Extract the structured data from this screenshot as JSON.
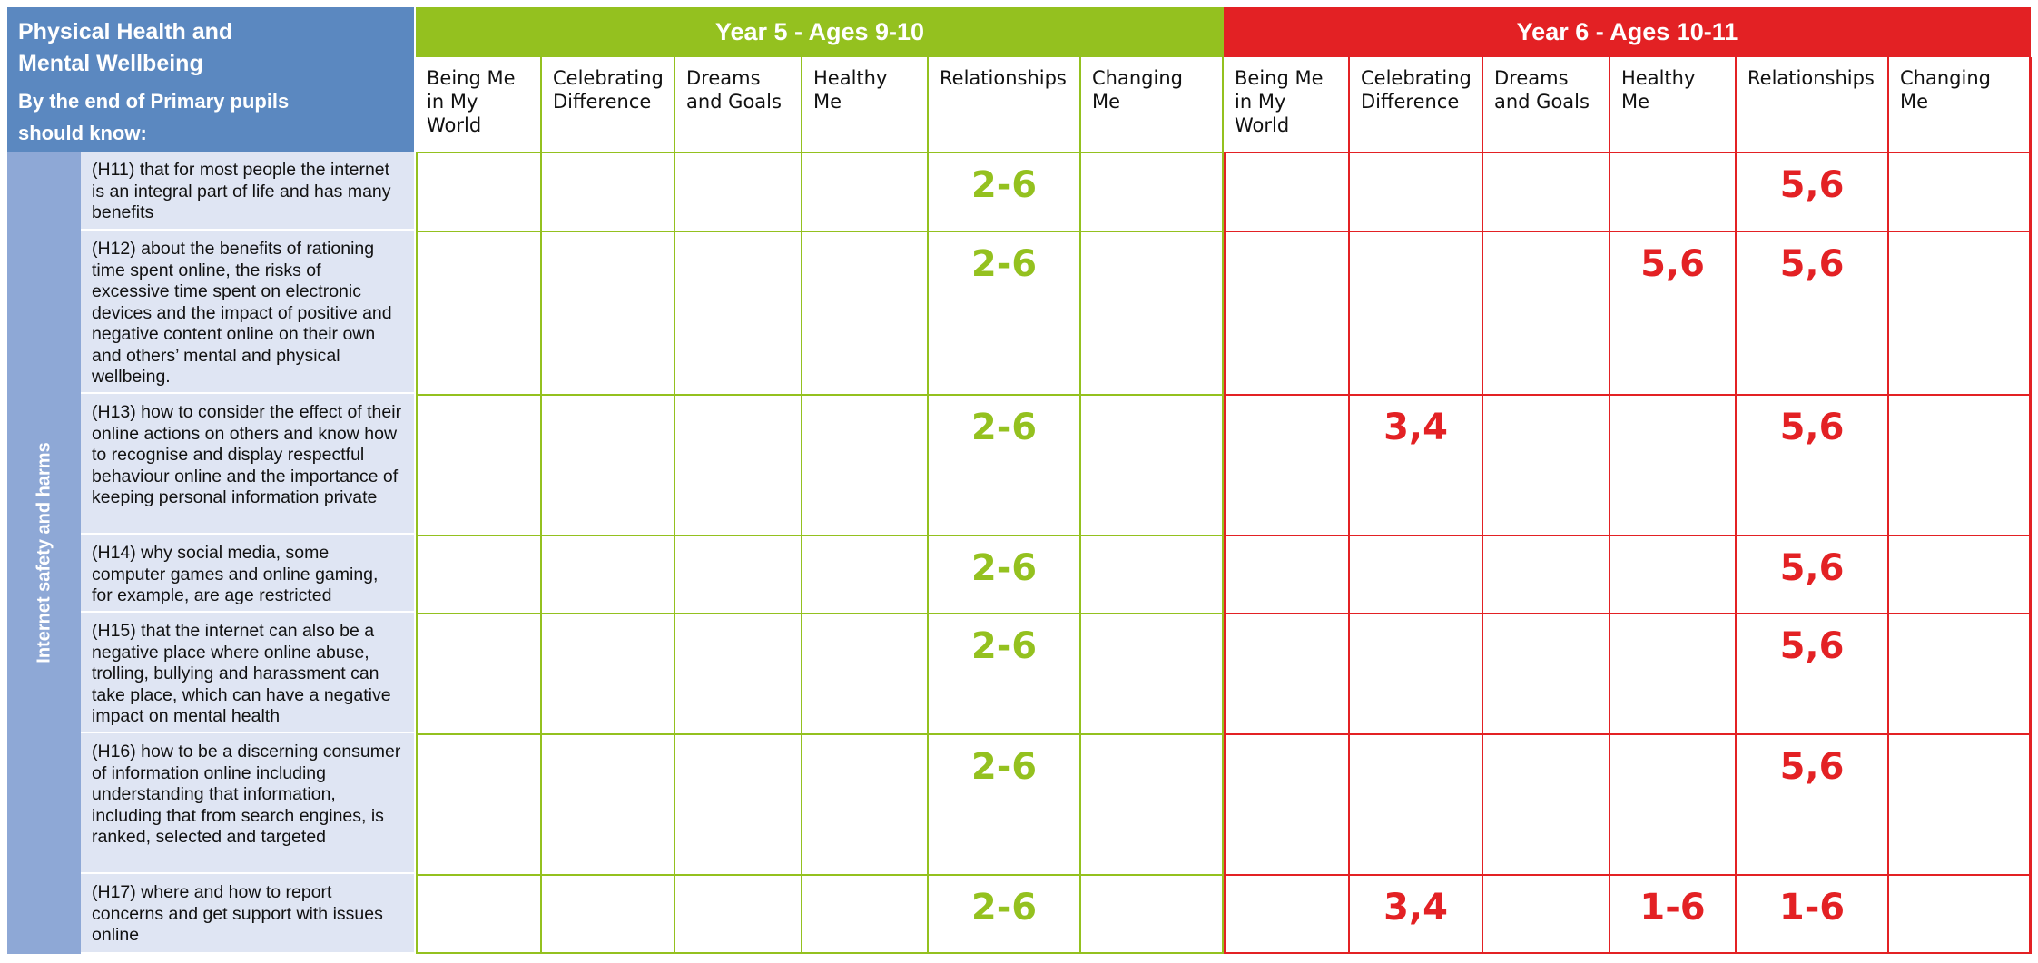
{
  "header": {
    "title": "Physical Health and Mental Wellbeing",
    "subtitle": "By the end of Primary pupils should know:"
  },
  "strand": "Internet safety and harms",
  "years": [
    {
      "label": "Year 5 - Ages 9-10",
      "color": "#94c11f"
    },
    {
      "label": "Year 6 - Ages 10-11",
      "color": "#e32124"
    }
  ],
  "puzzles": [
    "Being Me in My World",
    "Celebrating Difference",
    "Dreams and Goals",
    "Healthy Me",
    "Relationships",
    "Changing Me"
  ],
  "outcomes": [
    {
      "text": "(H11) that for most people the internet is an integral part of life and has many benefits",
      "year5": [
        "",
        "",
        "",
        "",
        "2-6",
        ""
      ],
      "year6": [
        "",
        "",
        "",
        "",
        "5,6",
        ""
      ]
    },
    {
      "text": "(H12) about the benefits of rationing time spent online, the risks of excessive time spent on electronic devices and the impact of positive and negative content online on their own and others’ mental and physical wellbeing.",
      "year5": [
        "",
        "",
        "",
        "",
        "2-6",
        ""
      ],
      "year6": [
        "",
        "",
        "",
        "5,6",
        "5,6",
        ""
      ]
    },
    {
      "text": "(H13) how to consider the effect of their online actions on others and know how to recognise and display respectful behaviour online and the importance of keeping personal information private",
      "year5": [
        "",
        "",
        "",
        "",
        "2-6",
        ""
      ],
      "year6": [
        "",
        "3,4",
        "",
        "",
        "5,6",
        ""
      ]
    },
    {
      "text": "(H14) why social media, some computer games and online gaming, for example, are age restricted",
      "year5": [
        "",
        "",
        "",
        "",
        "2-6",
        ""
      ],
      "year6": [
        "",
        "",
        "",
        "",
        "5,6",
        ""
      ]
    },
    {
      "text": "(H15) that the internet can also be a negative place where online abuse, trolling, bullying and harassment can take place, which can have a negative impact on mental health",
      "year5": [
        "",
        "",
        "",
        "",
        "2-6",
        ""
      ],
      "year6": [
        "",
        "",
        "",
        "",
        "5,6",
        ""
      ]
    },
    {
      "text": "(H16) how to be a discerning consumer of information online including understanding that information, including that from search engines, is ranked, selected and targeted",
      "year5": [
        "",
        "",
        "",
        "",
        "2-6",
        ""
      ],
      "year6": [
        "",
        "",
        "",
        "",
        "5,6",
        ""
      ]
    },
    {
      "text": "(H17) where and how to report concerns and get support with issues online",
      "year5": [
        "",
        "",
        "",
        "",
        "2-6",
        ""
      ],
      "year6": [
        "",
        "3,4",
        "",
        "1-6",
        "1-6",
        ""
      ]
    }
  ]
}
